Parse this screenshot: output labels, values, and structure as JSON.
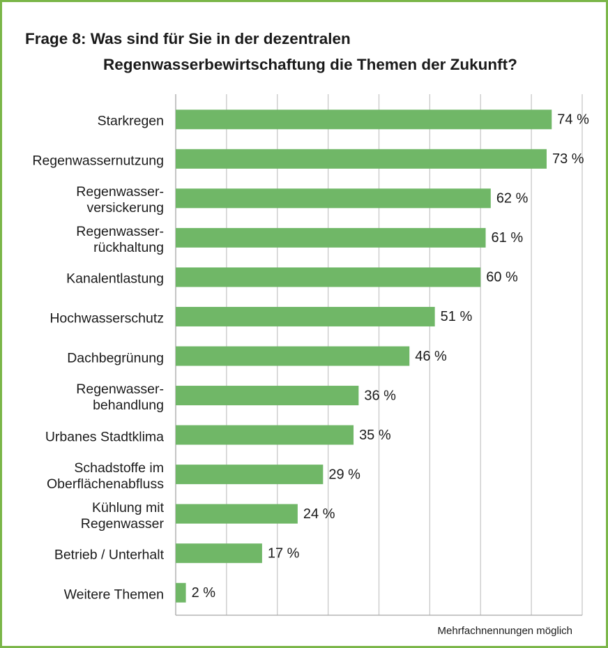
{
  "chart_data": {
    "type": "barh",
    "title": "Frage 8: Was sind für Sie in der dezentralen\nRegenwasserbewirtschaftung die Themen der Zukunft?",
    "categories": [
      "Starkregen",
      "Regenwassernutzung",
      "Regenwasser-\nversickerung",
      "Regenwasser-\nrückhaltung",
      "Kanalentlastung",
      "Hochwasserschutz",
      "Dachbegrünung",
      "Regenwasser-\nbehandlung",
      "Urbanes Stadtklima",
      "Schadstoffe im\nOberflächenabfluss",
      "Kühlung mit\nRegenwasser",
      "Betrieb / Unterhalt",
      "Weitere Themen"
    ],
    "values": [
      74,
      73,
      62,
      61,
      60,
      51,
      46,
      36,
      35,
      29,
      24,
      17,
      2
    ],
    "value_labels": [
      "74 %",
      "73 %",
      "62 %",
      "61 %",
      "60 %",
      "51 %",
      "46 %",
      "36 %",
      "35 %",
      "29 %",
      "24 %",
      "17 %",
      "2 %"
    ],
    "color": "#70b767",
    "xlim": [
      0,
      80
    ],
    "xticks": [
      0,
      10,
      20,
      30,
      40,
      50,
      60,
      70,
      80
    ],
    "grid": true,
    "note": "Mehrfachnennungen möglich"
  }
}
